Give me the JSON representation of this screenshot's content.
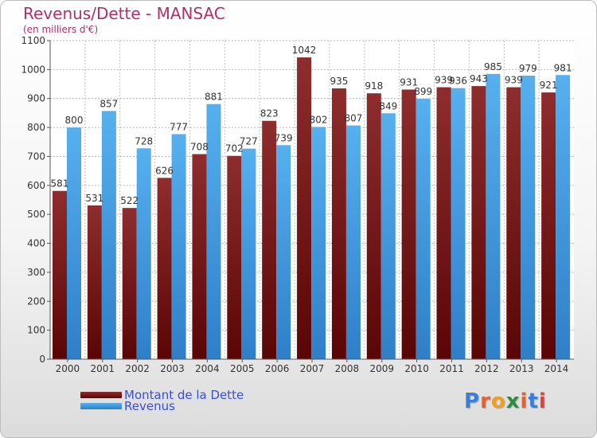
{
  "header": {
    "title": "Revenus/Dette - MANSAC",
    "subtitle": "(en milliers d'€)"
  },
  "legend": [
    {
      "label": "Montant de la Dette",
      "color": "#7a1c1c"
    },
    {
      "label": "Revenus",
      "color": "#3e97dc"
    }
  ],
  "logo": {
    "text": "Proxiti",
    "letters": [
      "P",
      "r",
      "o",
      "x",
      "i",
      "t",
      "i"
    ],
    "letter_colors": [
      "#3a7fd5",
      "#e5622d",
      "#f0a020",
      "#2e8e3e",
      "#e5622d",
      "#3a7fd5",
      "#e04040"
    ]
  },
  "chart_data": {
    "type": "bar",
    "title": "Revenus/Dette - MANSAC",
    "subtitle": "(en milliers d'€)",
    "xlabel": "",
    "ylabel": "",
    "ylim": [
      0,
      1100
    ],
    "yticks": [
      0,
      100,
      200,
      300,
      400,
      500,
      600,
      700,
      800,
      900,
      1000,
      1100
    ],
    "grid": true,
    "legend_position": "bottom-left",
    "categories": [
      "2000",
      "2001",
      "2002",
      "2003",
      "2004",
      "2005",
      "2006",
      "2007",
      "2008",
      "2009",
      "2010",
      "2011",
      "2012",
      "2013",
      "2014"
    ],
    "series": [
      {
        "name": "Montant de la Dette",
        "color": "#7a1c1c",
        "values": [
          581,
          531,
          522,
          626,
          708,
          702,
          823,
          1042,
          935,
          918,
          931,
          939,
          943,
          939,
          921
        ]
      },
      {
        "name": "Revenus",
        "color": "#3e97dc",
        "values": [
          800,
          857,
          728,
          777,
          881,
          727,
          739,
          802,
          807,
          849,
          899,
          936,
          985,
          979,
          981
        ]
      }
    ]
  }
}
